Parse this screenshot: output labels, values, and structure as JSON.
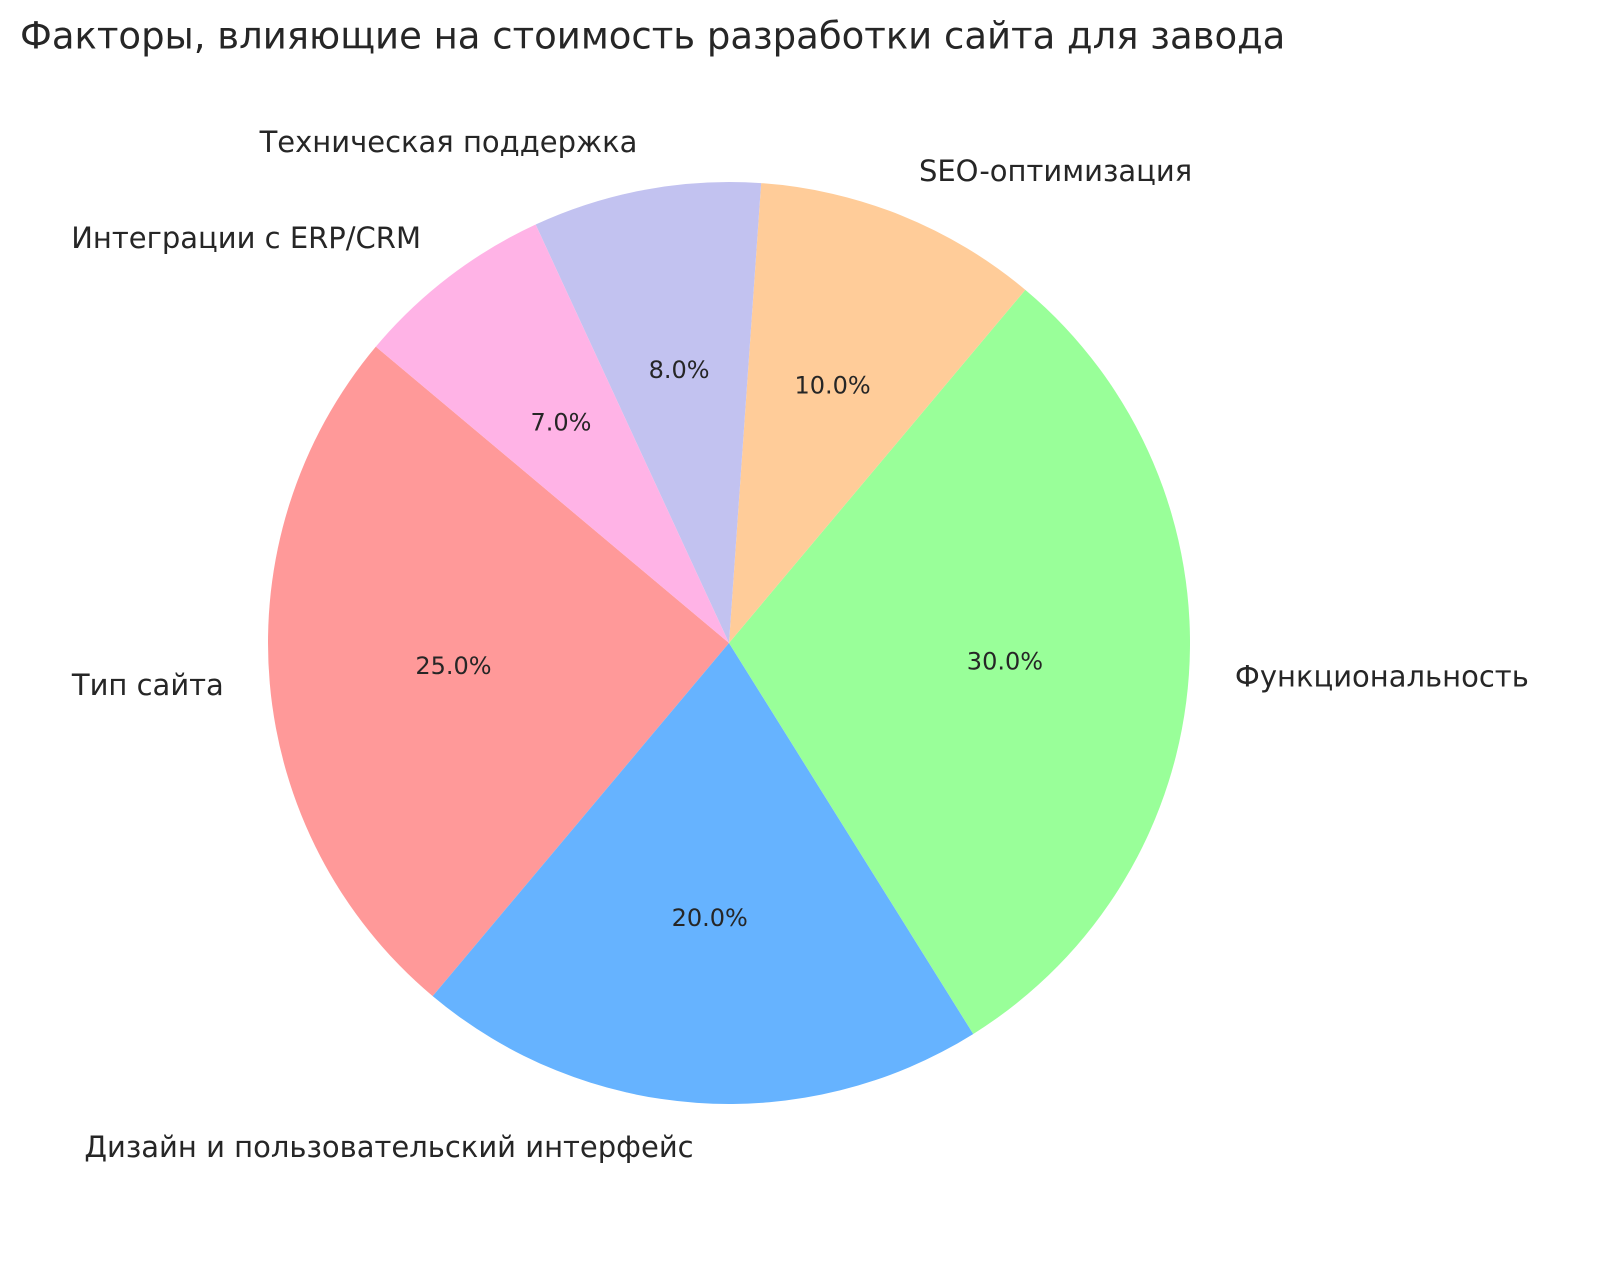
{
  "chart_data": {
    "type": "pie",
    "title": "Факторы, влияющие на стоимость разработки сайта для завода",
    "categories": [
      "Тип сайта",
      "Дизайн и пользовательский интерфейс",
      "Функциональность",
      "SEO-оптимизация",
      "Техническая поддержка",
      "Интеграции с ERP/CRM"
    ],
    "values": [
      25,
      20,
      30,
      10,
      8,
      7
    ],
    "value_labels": [
      "25.0%",
      "20.0%",
      "30.0%",
      "10.0%",
      "8.0%",
      "7.0%"
    ],
    "colors": [
      "#ff9999",
      "#66b3ff",
      "#99ff99",
      "#ffcc99",
      "#c2c2f0",
      "#ffb3e6"
    ],
    "startangle": 140
  }
}
